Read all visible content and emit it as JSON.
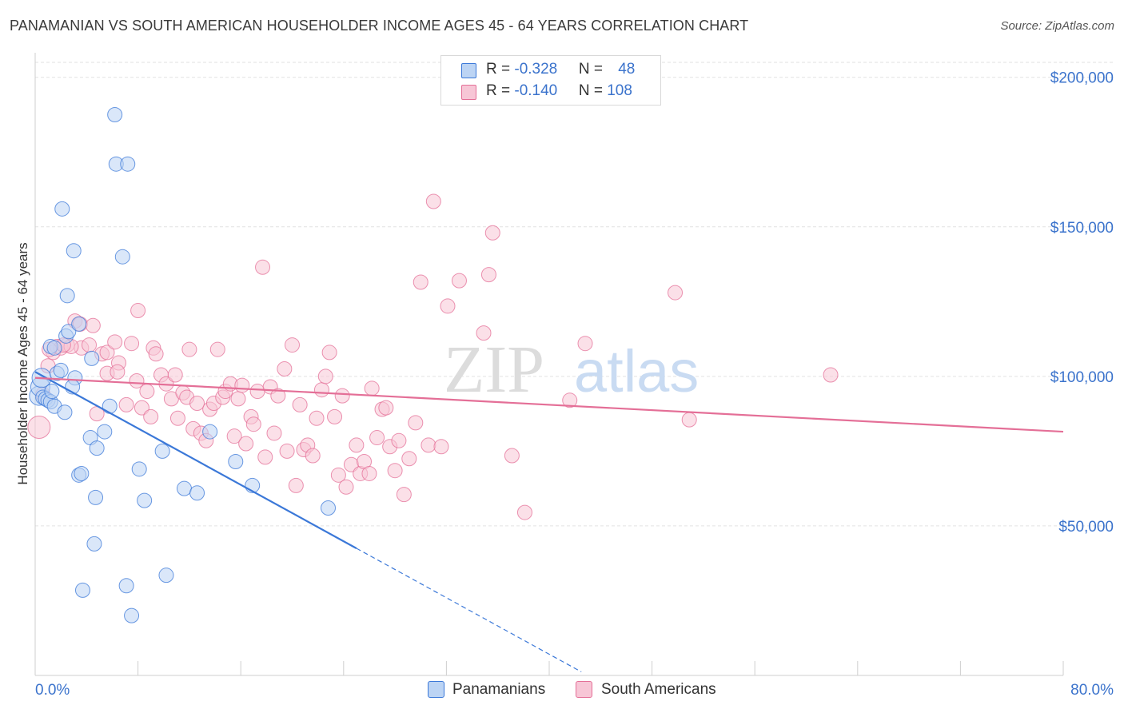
{
  "title": "PANAMANIAN VS SOUTH AMERICAN HOUSEHOLDER INCOME AGES 45 - 64 YEARS CORRELATION CHART",
  "source": "Source: ZipAtlas.com",
  "watermark": {
    "zip": "ZIP",
    "atlas": "atlas"
  },
  "colors": {
    "blue": "#3b78d8",
    "blue_fill": "#bcd4f4",
    "pink": "#e46f97",
    "pink_fill": "#f7c6d6",
    "value_text": "#3b73cc",
    "grid": "#e2e2e2"
  },
  "legend_top": [
    {
      "r_label": "R = ",
      "r_value": "-0.328",
      "n_label": "N = ",
      "n_value": "48"
    },
    {
      "r_label": "R = ",
      "r_value": "-0.140",
      "n_label": "N = ",
      "n_value": "108"
    }
  ],
  "legend_bottom": [
    "Panamanians",
    "South Americans"
  ],
  "chart_data": {
    "type": "scatter",
    "xlabel": "",
    "ylabel": "Householder Income Ages 45 - 64 years",
    "x_tick_labels": [
      "0.0%",
      "80.0%"
    ],
    "y_tick_labels": [
      "$50,000",
      "$100,000",
      "$150,000",
      "$200,000"
    ],
    "xlim": [
      0,
      80
    ],
    "ylim": [
      0,
      205000
    ],
    "y_ticks": [
      50000,
      100000,
      150000,
      200000
    ],
    "grid": true,
    "series": [
      {
        "name": "Panamanians",
        "color": "#3b78d8",
        "trend": {
          "x0": 0,
          "y0": 101500,
          "x1": 25,
          "y1": 42500,
          "dashed_to_x": 42.5
        },
        "points": [
          [
            0.3,
            93500
          ],
          [
            0.4,
            96500
          ],
          [
            0.5,
            99500
          ],
          [
            0.6,
            93000
          ],
          [
            0.8,
            92500
          ],
          [
            1.0,
            92000
          ],
          [
            1.2,
            91500
          ],
          [
            1.3,
            95000
          ],
          [
            1.5,
            90000
          ],
          [
            1.7,
            101000
          ],
          [
            1.2,
            110000
          ],
          [
            2.3,
            88000
          ],
          [
            2.4,
            113500
          ],
          [
            2.6,
            115000
          ],
          [
            2.5,
            127000
          ],
          [
            3.0,
            142000
          ],
          [
            3.1,
            99500
          ],
          [
            2.9,
            96500
          ],
          [
            3.4,
            117500
          ],
          [
            2.1,
            156000
          ],
          [
            6.2,
            187500
          ],
          [
            6.3,
            171000
          ],
          [
            7.2,
            171000
          ],
          [
            6.8,
            140000
          ],
          [
            4.4,
            106000
          ],
          [
            4.3,
            79500
          ],
          [
            4.8,
            76000
          ],
          [
            5.4,
            81500
          ],
          [
            5.8,
            90000
          ],
          [
            3.4,
            67000
          ],
          [
            3.6,
            67500
          ],
          [
            4.7,
            59500
          ],
          [
            8.1,
            69000
          ],
          [
            8.5,
            58500
          ],
          [
            9.9,
            75000
          ],
          [
            11.6,
            62500
          ],
          [
            12.6,
            61000
          ],
          [
            13.6,
            81500
          ],
          [
            15.6,
            71500
          ],
          [
            16.9,
            63500
          ],
          [
            22.8,
            56000
          ],
          [
            4.6,
            44000
          ],
          [
            3.7,
            28500
          ],
          [
            7.1,
            30000
          ],
          [
            10.2,
            33500
          ],
          [
            7.5,
            20000
          ],
          [
            1.5,
            109500
          ],
          [
            2.0,
            102000
          ]
        ]
      },
      {
        "name": "South Americans",
        "color": "#e46f97",
        "trend": {
          "x0": 0,
          "y0": 99500,
          "x1": 80,
          "y1": 81500
        },
        "points": [
          [
            0.3,
            83000
          ],
          [
            0.6,
            94000
          ],
          [
            1.0,
            103500
          ],
          [
            1.4,
            108000
          ],
          [
            1.7,
            110000
          ],
          [
            2.0,
            109500
          ],
          [
            2.5,
            110500
          ],
          [
            3.1,
            118500
          ],
          [
            3.5,
            117500
          ],
          [
            4.5,
            117000
          ],
          [
            3.6,
            109500
          ],
          [
            4.2,
            110500
          ],
          [
            5.2,
            107500
          ],
          [
            5.6,
            108000
          ],
          [
            6.2,
            111500
          ],
          [
            6.5,
            104500
          ],
          [
            4.8,
            87500
          ],
          [
            5.6,
            101000
          ],
          [
            6.4,
            101500
          ],
          [
            7.1,
            90500
          ],
          [
            7.5,
            111000
          ],
          [
            7.9,
            98500
          ],
          [
            8.0,
            122000
          ],
          [
            8.3,
            89500
          ],
          [
            8.7,
            95000
          ],
          [
            9.0,
            86500
          ],
          [
            9.2,
            109500
          ],
          [
            9.4,
            107500
          ],
          [
            9.8,
            100500
          ],
          [
            10.2,
            97500
          ],
          [
            10.6,
            92500
          ],
          [
            10.9,
            100500
          ],
          [
            11.1,
            86000
          ],
          [
            11.5,
            94500
          ],
          [
            11.8,
            93000
          ],
          [
            12.0,
            109000
          ],
          [
            12.3,
            82500
          ],
          [
            12.6,
            91000
          ],
          [
            12.9,
            81000
          ],
          [
            13.3,
            78500
          ],
          [
            13.6,
            89000
          ],
          [
            13.9,
            91000
          ],
          [
            14.2,
            109000
          ],
          [
            14.6,
            93000
          ],
          [
            14.8,
            95000
          ],
          [
            15.2,
            97500
          ],
          [
            15.5,
            80000
          ],
          [
            15.8,
            92500
          ],
          [
            16.1,
            97000
          ],
          [
            16.4,
            77500
          ],
          [
            16.8,
            86500
          ],
          [
            17.0,
            84000
          ],
          [
            17.3,
            95000
          ],
          [
            17.7,
            136500
          ],
          [
            17.9,
            73000
          ],
          [
            18.3,
            96500
          ],
          [
            18.6,
            81000
          ],
          [
            18.9,
            93500
          ],
          [
            19.4,
            102500
          ],
          [
            19.6,
            75000
          ],
          [
            20.0,
            110500
          ],
          [
            20.3,
            63500
          ],
          [
            20.6,
            90500
          ],
          [
            20.9,
            75500
          ],
          [
            21.2,
            77000
          ],
          [
            21.6,
            73500
          ],
          [
            21.9,
            86000
          ],
          [
            22.3,
            95500
          ],
          [
            22.6,
            100000
          ],
          [
            22.9,
            108000
          ],
          [
            23.3,
            86500
          ],
          [
            23.6,
            67000
          ],
          [
            23.9,
            93500
          ],
          [
            24.2,
            63000
          ],
          [
            24.6,
            70500
          ],
          [
            25.0,
            77000
          ],
          [
            25.3,
            67500
          ],
          [
            25.6,
            71500
          ],
          [
            26.0,
            67500
          ],
          [
            26.2,
            96000
          ],
          [
            26.6,
            79500
          ],
          [
            27.0,
            89000
          ],
          [
            27.3,
            89500
          ],
          [
            27.6,
            76500
          ],
          [
            28.0,
            68500
          ],
          [
            28.3,
            78500
          ],
          [
            28.7,
            60500
          ],
          [
            29.1,
            72500
          ],
          [
            29.6,
            84500
          ],
          [
            30.0,
            131500
          ],
          [
            30.6,
            77000
          ],
          [
            31.0,
            158500
          ],
          [
            31.6,
            76500
          ],
          [
            32.1,
            123500
          ],
          [
            33.0,
            132000
          ],
          [
            34.9,
            114500
          ],
          [
            35.3,
            134000
          ],
          [
            35.6,
            148000
          ],
          [
            37.1,
            73500
          ],
          [
            38.1,
            54500
          ],
          [
            41.6,
            92000
          ],
          [
            42.8,
            111000
          ],
          [
            49.8,
            128000
          ],
          [
            50.9,
            85500
          ],
          [
            61.9,
            100500
          ],
          [
            1.1,
            109000
          ],
          [
            2.8,
            110000
          ],
          [
            2.2,
            110500
          ]
        ]
      }
    ]
  }
}
